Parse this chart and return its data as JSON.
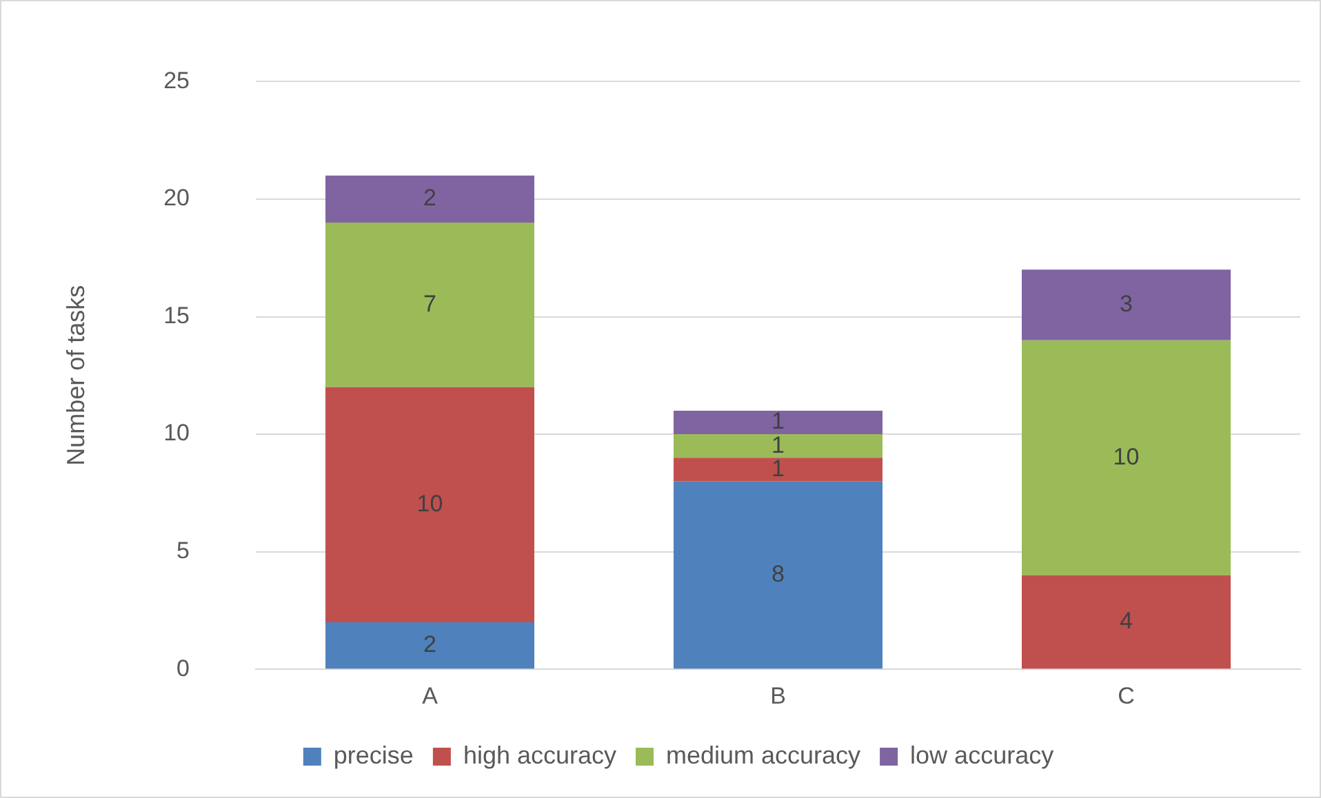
{
  "chart_data": {
    "type": "bar",
    "stacked": true,
    "categories": [
      "A",
      "B",
      "C"
    ],
    "ylabel": "Number of tasks",
    "ylim": [
      0,
      25
    ],
    "yticks": [
      0,
      5,
      10,
      15,
      20,
      25
    ],
    "grid": "y",
    "legend": "bottom",
    "data_labels": true,
    "series": [
      {
        "name": "precise",
        "color": "#4f81bd",
        "values": [
          2,
          8,
          null
        ]
      },
      {
        "name": "high accuracy",
        "color": "#c0504d",
        "values": [
          10,
          1,
          4
        ]
      },
      {
        "name": "medium accuracy",
        "color": "#9bbb59",
        "values": [
          7,
          1,
          10
        ]
      },
      {
        "name": "low accuracy",
        "color": "#8064a2",
        "values": [
          2,
          1,
          3
        ]
      }
    ]
  }
}
